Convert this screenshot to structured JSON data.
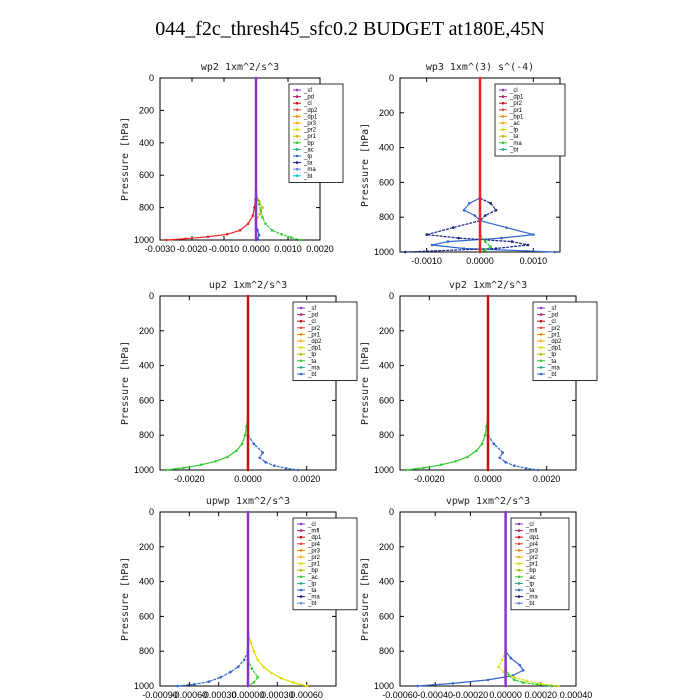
{
  "page": {
    "title": "044_f2c_thresh45_sfc0.2  BUDGET at180E,45N"
  },
  "chart_data": [
    {
      "type": "line",
      "title": "wp2   1xm^2/s^3",
      "ylabel": "Pressure [hPa]",
      "xlim": [
        -0.003,
        0.002
      ],
      "ylim": [
        1000,
        0
      ],
      "xticks": [
        "-0.0030",
        "-0.0020",
        "-0.0010",
        "0.0000",
        "0.0010",
        "0.0020"
      ],
      "xtick_values": [
        -0.003,
        -0.002,
        -0.001,
        0.0,
        0.001,
        0.002
      ],
      "yticks": [
        "0",
        "200",
        "400",
        "600",
        "800",
        "1000"
      ],
      "ytick_values": [
        0,
        200,
        400,
        600,
        800,
        1000
      ],
      "legend": [
        "_sf",
        "_pd",
        "_cl",
        "_dp2",
        "_dp1",
        "_pr3",
        "_pr2",
        "_pr1",
        "_bp",
        "_ac",
        "_tp",
        "_ta",
        "_ma",
        "_bt"
      ],
      "series": [
        {
          "name": "_bp",
          "color": "#ee2222",
          "x": [
            0.0,
            -2e-05,
            -5e-05,
            -0.0001,
            -0.00025,
            -0.0005,
            -0.0009,
            -0.0015,
            -0.0022,
            -0.0028
          ],
          "y": [
            700,
            750,
            800,
            850,
            900,
            940,
            965,
            980,
            992,
            1000
          ]
        },
        {
          "name": "_ac",
          "color": "#33cc33",
          "x": [
            0.0,
            5e-05,
            0.0001,
            0.00015,
            0.0002,
            0.0003,
            0.0005,
            0.0008,
            0.0011,
            0.0014
          ],
          "y": [
            700,
            750,
            780,
            820,
            860,
            900,
            940,
            965,
            985,
            1000
          ]
        },
        {
          "name": "_pr1",
          "color": "#bbbb00",
          "x": [
            0.0,
            0.0001,
            0.0002,
            0.00012,
            0.0
          ],
          "y": [
            720,
            760,
            800,
            840,
            880
          ]
        },
        {
          "name": "_tp",
          "color": "#3366cc",
          "x": [
            0.0,
            5e-05,
            0.0001,
            5e-05,
            0.0
          ],
          "y": [
            900,
            940,
            970,
            990,
            1000
          ]
        },
        {
          "name": "_sf",
          "color": "#8833cc",
          "x": [
            0.0,
            0.0
          ],
          "y": [
            0,
            1000
          ]
        }
      ]
    },
    {
      "type": "line",
      "title": "wp3   1xm^(3) s^(-4)",
      "ylabel": "Pressure [hPa]",
      "xlim": [
        -0.0015,
        0.0015
      ],
      "ylim": [
        1000,
        0
      ],
      "xticks": [
        "-0.0010",
        "0.0000",
        "0.0010"
      ],
      "xtick_values": [
        -0.001,
        0.0,
        0.001
      ],
      "yticks": [
        "0",
        "200",
        "400",
        "600",
        "800",
        "1000"
      ],
      "ytick_values": [
        0,
        200,
        400,
        600,
        800,
        1000
      ],
      "legend": [
        "_cl",
        "_dp1",
        "_pr2",
        "_pr1",
        "_bp1",
        "_ac",
        "_tp",
        "_ta",
        "_ma",
        "_bt"
      ],
      "series": [
        {
          "name": "_tp",
          "color": "#3366cc",
          "x": [
            0.0,
            -0.0002,
            -0.0003,
            -0.0001,
            0.0,
            0.0005,
            0.001,
            0.0004,
            -0.0006,
            -0.0009,
            -0.0003,
            0.0014
          ],
          "y": [
            690,
            720,
            760,
            790,
            820,
            860,
            900,
            920,
            940,
            960,
            980,
            1000
          ]
        },
        {
          "name": "_ta",
          "color": "#112288",
          "x": [
            0.0,
            0.0002,
            0.0003,
            0.0001,
            0.0,
            -0.0005,
            -0.001,
            -0.0004,
            0.0006,
            0.0009,
            0.0003,
            -0.0014
          ],
          "y": [
            690,
            720,
            760,
            790,
            820,
            860,
            900,
            920,
            940,
            960,
            980,
            1000
          ]
        },
        {
          "name": "_bp1",
          "color": "#33cc33",
          "x": [
            0.0,
            0.0001,
            0.0002,
            0.0001,
            0.0
          ],
          "y": [
            900,
            940,
            970,
            990,
            1000
          ]
        },
        {
          "name": "_cl",
          "color": "#ee2222",
          "x": [
            0.0,
            0.0
          ],
          "y": [
            0,
            1000
          ]
        }
      ]
    },
    {
      "type": "line",
      "title": "up2   1xm^2/s^3",
      "ylabel": "Pressure [hPa]",
      "xlim": [
        -0.003,
        0.003
      ],
      "ylim": [
        1000,
        0
      ],
      "xticks": [
        "-0.0020",
        "0.0000",
        "0.0020"
      ],
      "xtick_values": [
        -0.002,
        0.0,
        0.002
      ],
      "yticks": [
        "0",
        "200",
        "400",
        "600",
        "800",
        "1000"
      ],
      "ytick_values": [
        0,
        200,
        400,
        600,
        800,
        1000
      ],
      "legend": [
        "_sf",
        "_pd",
        "_cl",
        "_pr2",
        "_pr1",
        "_dp2",
        "_dp1",
        "_tp",
        "_ta",
        "_ma",
        "_bt"
      ],
      "series": [
        {
          "name": "_dp1",
          "color": "#33cc33",
          "x": [
            0.0,
            -5e-05,
            -0.0001,
            -0.0002,
            -0.0004,
            -0.0007,
            -0.0011,
            -0.0016,
            -0.0022,
            -0.0028
          ],
          "y": [
            700,
            750,
            800,
            850,
            890,
            925,
            950,
            970,
            988,
            1000
          ]
        },
        {
          "name": "_tp",
          "color": "#3366cc",
          "x": [
            0.0,
            0.0002,
            0.0005,
            0.0004,
            0.0006,
            0.0009,
            0.0013,
            0.0017
          ],
          "y": [
            800,
            850,
            900,
            930,
            955,
            975,
            990,
            1000
          ]
        },
        {
          "name": "_sf",
          "color": "#cc1111",
          "x": [
            0.0,
            0.0
          ],
          "y": [
            0,
            1000
          ]
        }
      ]
    },
    {
      "type": "line",
      "title": "vp2   1xm^2/s^3",
      "ylabel": "Pressure [hPa]",
      "xlim": [
        -0.003,
        0.003
      ],
      "ylim": [
        1000,
        0
      ],
      "xticks": [
        "-0.0020",
        "0.0000",
        "0.0020"
      ],
      "xtick_values": [
        -0.002,
        0.0,
        0.002
      ],
      "yticks": [
        "0",
        "200",
        "400",
        "600",
        "800",
        "1000"
      ],
      "ytick_values": [
        0,
        200,
        400,
        600,
        800,
        1000
      ],
      "legend": [
        "_sf",
        "_pd",
        "_cl",
        "_pr2",
        "_pr1",
        "_dp2",
        "_dp1",
        "_tp",
        "_ta",
        "_ma",
        "_bt"
      ],
      "series": [
        {
          "name": "_dp1",
          "color": "#33cc33",
          "x": [
            0.0,
            -5e-05,
            -0.0001,
            -0.0002,
            -0.0004,
            -0.0007,
            -0.0011,
            -0.0016,
            -0.0022,
            -0.0028
          ],
          "y": [
            700,
            750,
            800,
            850,
            890,
            925,
            950,
            970,
            988,
            1000
          ]
        },
        {
          "name": "_tp",
          "color": "#3366cc",
          "x": [
            0.0,
            0.0002,
            0.0005,
            0.0004,
            0.0006,
            0.0009,
            0.0013,
            0.0017
          ],
          "y": [
            800,
            850,
            900,
            930,
            955,
            975,
            990,
            1000
          ]
        },
        {
          "name": "_sf",
          "color": "#cc1111",
          "x": [
            0.0,
            0.0
          ],
          "y": [
            0,
            1000
          ]
        }
      ]
    },
    {
      "type": "line",
      "title": "upwp   1xm^2/s^3",
      "ylabel": "Pressure [hPa]",
      "xlim": [
        -0.0009,
        0.0009
      ],
      "ylim": [
        1000,
        0
      ],
      "xticks": [
        "-0.00090",
        "-0.00060",
        "-0.00030",
        "0.00000",
        "0.00030",
        "0.00060"
      ],
      "xtick_values": [
        -0.0009,
        -0.0006,
        -0.0003,
        0.0,
        0.0003,
        0.0006
      ],
      "yticks": [
        "0",
        "200",
        "400",
        "600",
        "800",
        "1000"
      ],
      "ytick_values": [
        0,
        200,
        400,
        600,
        800,
        1000
      ],
      "legend": [
        "_cl",
        "_mfl",
        "_dp1",
        "_pr4",
        "_pr3",
        "_pr2",
        "_pr1",
        "_bp",
        "_ac",
        "_tp",
        "_ta",
        "_ma",
        "_bt"
      ],
      "series": [
        {
          "name": "_pr1",
          "color": "#dddd00",
          "x": [
            0.0,
            3e-05,
            6e-05,
            0.0001,
            0.00016,
            0.00024,
            0.00034,
            0.00046,
            0.0006
          ],
          "y": [
            700,
            750,
            800,
            850,
            890,
            925,
            955,
            980,
            1000
          ]
        },
        {
          "name": "_tp",
          "color": "#3366cc",
          "x": [
            0.0,
            -4e-05,
            -0.0001,
            -0.00018,
            -0.00028,
            -0.0004,
            -0.00055,
            -0.00072
          ],
          "y": [
            800,
            850,
            890,
            920,
            950,
            975,
            990,
            1000
          ]
        },
        {
          "name": "_ac",
          "color": "#33cc33",
          "x": [
            0.0,
            4e-05,
            0.0001,
            6e-05,
            0.0
          ],
          "y": [
            850,
            900,
            950,
            980,
            1000
          ]
        },
        {
          "name": "_cl",
          "color": "#8833cc",
          "x": [
            0.0,
            0.0
          ],
          "y": [
            0,
            1000
          ]
        }
      ]
    },
    {
      "type": "line",
      "title": "vpwp   1xm^2/s^3",
      "ylabel": "Pressure [hPa]",
      "xlim": [
        -0.0006,
        0.0004
      ],
      "ylim": [
        1000,
        0
      ],
      "xticks": [
        "-0.00060",
        "-0.00040",
        "-0.00020",
        "0.00000",
        "0.00020",
        "0.00040"
      ],
      "xtick_values": [
        -0.0006,
        -0.0004,
        -0.0002,
        0.0,
        0.0002,
        0.0004
      ],
      "yticks": [
        "0",
        "200",
        "400",
        "600",
        "800",
        "1000"
      ],
      "ytick_values": [
        0,
        200,
        400,
        600,
        800,
        1000
      ],
      "legend": [
        "_cl",
        "_mfl",
        "_dp1",
        "_pr4",
        "_pr3",
        "_pr2",
        "_pr1",
        "_bp",
        "_ac",
        "_tp",
        "_ta",
        "_ma",
        "_bt"
      ],
      "series": [
        {
          "name": "_tp",
          "color": "#3366cc",
          "x": [
            0.0,
            3e-05,
            8e-05,
            0.0001,
            4e-05,
            -0.0001,
            -0.0003,
            -0.0005
          ],
          "y": [
            800,
            840,
            880,
            910,
            940,
            965,
            985,
            1000
          ]
        },
        {
          "name": "_pr1",
          "color": "#dddd00",
          "x": [
            0.0,
            -2e-05,
            -4e-05,
            -1e-05,
            5e-05,
            0.00012,
            0.0002,
            0.0003
          ],
          "y": [
            800,
            850,
            890,
            920,
            950,
            970,
            988,
            1000
          ]
        },
        {
          "name": "_ac",
          "color": "#33cc33",
          "x": [
            0.0,
            2e-05,
            5e-05,
            0.0001,
            0.00018,
            0.00026
          ],
          "y": [
            900,
            940,
            965,
            980,
            992,
            1000
          ]
        },
        {
          "name": "_cl",
          "color": "#8833cc",
          "x": [
            0.0,
            0.0
          ],
          "y": [
            0,
            1000
          ]
        }
      ]
    }
  ]
}
